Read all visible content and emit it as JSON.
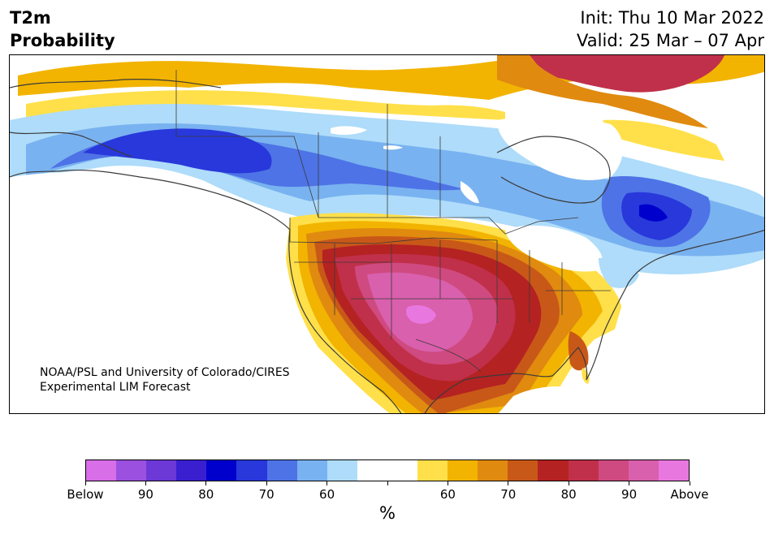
{
  "header": {
    "title_line1": "T2m",
    "title_line2": "Probability",
    "init_line": "Init: Thu 10 Mar 2022",
    "valid_line": "Valid: 25 Mar – 07 Apr"
  },
  "credit": {
    "line1": "NOAA/PSL and University of Colorado/CIRES",
    "line2": "Experimental LIM Forecast"
  },
  "colorbar": {
    "colors": [
      "#d86ee8",
      "#9b50df",
      "#6c38d6",
      "#3a1fd0",
      "#0000cc",
      "#2838db",
      "#4e73e6",
      "#79b2f0",
      "#aedcfa",
      "#ffffff",
      "#ffffff",
      "#ffe04a",
      "#f2b400",
      "#e08a10",
      "#c85818",
      "#b52222",
      "#c0304a",
      "#cf4a80",
      "#d960ad",
      "#e878e0"
    ],
    "tick_labels": [
      "Below",
      "90",
      "80",
      "70",
      "60",
      "",
      "60",
      "70",
      "80",
      "90",
      "Above"
    ],
    "unit": "%"
  },
  "map": {
    "palette": {
      "below60": "#aedcfa",
      "below70": "#79b2f0",
      "below80": "#4e73e6",
      "below90": "#2838db",
      "below95": "#0000cc",
      "above60": "#ffe04a",
      "above70": "#f2b400",
      "above75": "#e08a10",
      "above80": "#c85818",
      "above85": "#b52222",
      "above90": "#c0304a",
      "above95": "#cf4a80",
      "above97": "#d960ad",
      "above99": "#e878e0"
    }
  }
}
